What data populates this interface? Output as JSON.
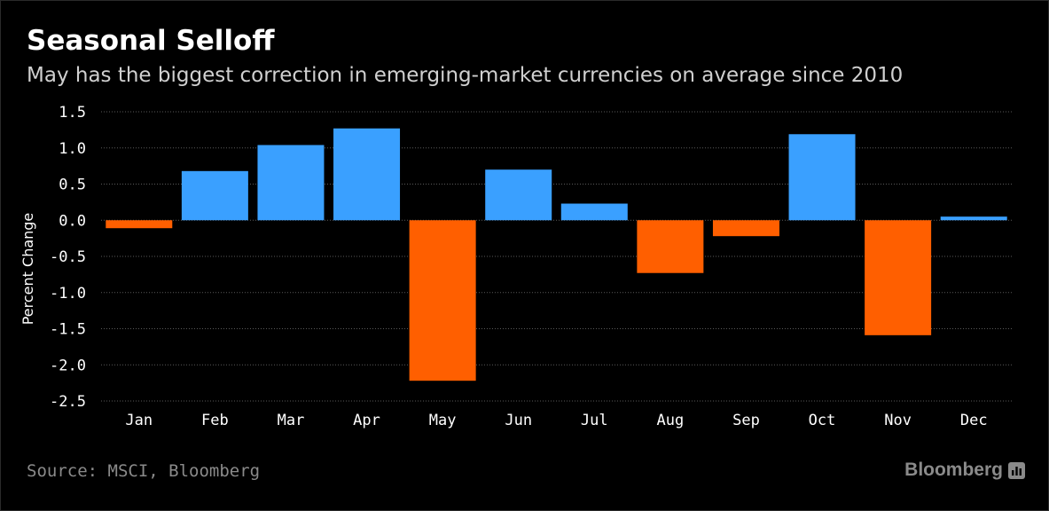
{
  "title": "Seasonal Selloff",
  "subtitle": "May has the biggest correction in emerging-market currencies on average since 2010",
  "source": "Source: MSCI, Bloomberg",
  "brand": "Bloomberg",
  "colors": {
    "background": "#000000",
    "positive": "#3aa0ff",
    "negative": "#ff5f00",
    "grid": "#5a5a5a",
    "text": "#ffffff",
    "muted": "#8a8a8a"
  },
  "chart_data": {
    "type": "bar",
    "title": "",
    "xlabel": "",
    "ylabel": "Percent Change",
    "ylim": [
      -2.5,
      1.5
    ],
    "yticks": [
      1.5,
      1.0,
      0.5,
      0.0,
      -0.5,
      -1.0,
      -1.5,
      -2.0,
      -2.5
    ],
    "ytick_labels": [
      "1.5",
      "1.0",
      "0.5",
      "0.0",
      "-0.5",
      "-1.0",
      "-1.5",
      "-2.0",
      "-2.5"
    ],
    "grid": true,
    "legend": "none",
    "categories": [
      "Jan",
      "Feb",
      "Mar",
      "Apr",
      "May",
      "Jun",
      "Jul",
      "Aug",
      "Sep",
      "Oct",
      "Nov",
      "Dec"
    ],
    "values": [
      -0.11,
      0.68,
      1.04,
      1.27,
      -2.22,
      0.7,
      0.23,
      -0.73,
      -0.22,
      1.19,
      -1.59,
      0.05
    ]
  }
}
